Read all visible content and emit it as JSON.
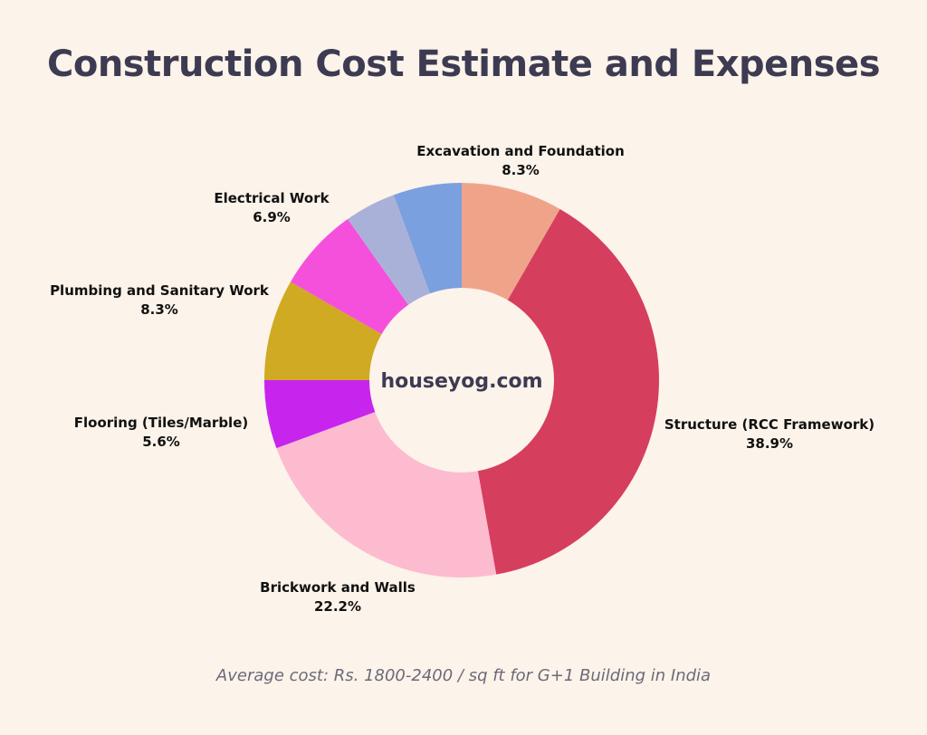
{
  "chart_data": {
    "type": "pie",
    "donut": true,
    "title": "Construction Cost Estimate and Expenses",
    "center_text": "houseyog.com",
    "footnote": "Average cost: Rs. 1800-2400 / sq ft for G+1 Building in India",
    "slices": [
      {
        "label": "Excavation and Foundation",
        "value": 8.3,
        "value_label": "8.3%",
        "color": "#efa48a"
      },
      {
        "label": "Structure (RCC Framework)",
        "value": 38.9,
        "value_label": "38.9%",
        "color": "#d63e5e"
      },
      {
        "label": "Brickwork and Walls",
        "value": 22.2,
        "value_label": "22.2%",
        "color": "#fdbbd0"
      },
      {
        "label": "Flooring (Tiles/Marble)",
        "value": 5.6,
        "value_label": "5.6%",
        "color": "#c724ee"
      },
      {
        "label": "Plumbing and Sanitary Work",
        "value": 8.3,
        "value_label": "8.3%",
        "color": "#cfaa22"
      },
      {
        "label": "Electrical Work",
        "value": 6.9,
        "value_label": "6.9%",
        "color": "#f550dc"
      },
      {
        "label": "",
        "value": 4.2,
        "value_label": "",
        "color": "#aab1d8"
      },
      {
        "label": "",
        "value": 5.6,
        "value_label": "",
        "color": "#7ba0df"
      }
    ],
    "background": "#fcf3ea"
  }
}
